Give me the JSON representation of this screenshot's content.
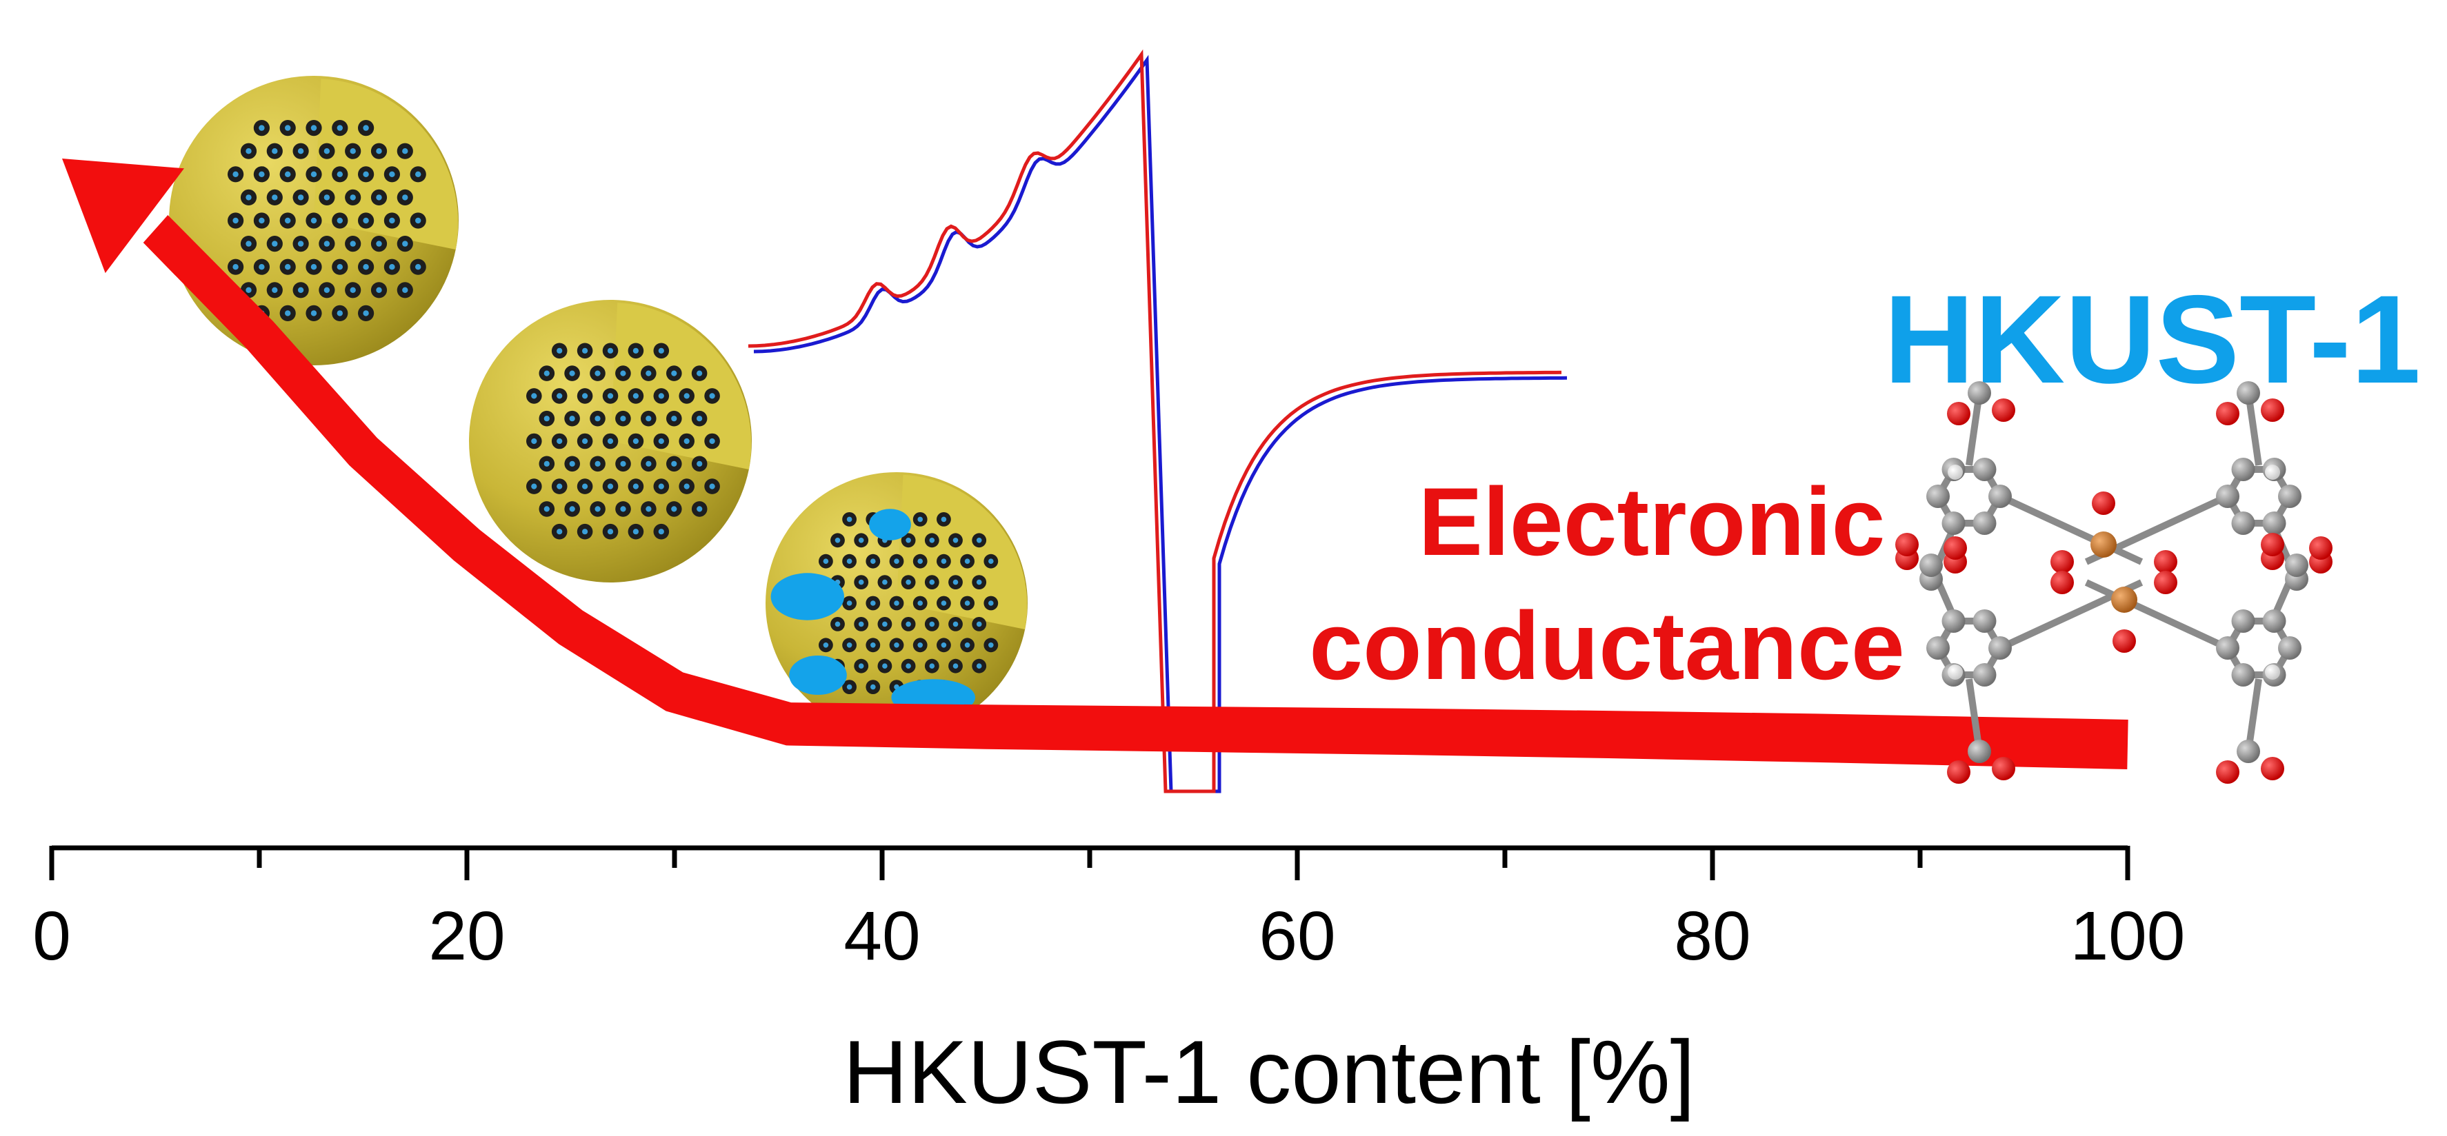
{
  "chart_data": {
    "type": "line",
    "title": "HKUST-1",
    "annotation": "Electronic conductance",
    "xlabel": "HKUST-1 content [%]",
    "ylabel": "",
    "xlim": [
      0,
      100
    ],
    "x_ticks_major": [
      0,
      20,
      40,
      60,
      80,
      100
    ],
    "x_ticks_major_labels": [
      "0",
      "20",
      "40",
      "60",
      "80",
      "100"
    ],
    "x_ticks_minor": [
      10,
      30,
      50,
      70,
      90
    ],
    "series": [
      {
        "name": "electronic-conductance-trend",
        "x": [
          0.5,
          5,
          10,
          15,
          20,
          25,
          30,
          35.5,
          45,
          55,
          65,
          75,
          85,
          100
        ],
        "values": [
          1.0,
          0.88,
          0.7,
          0.5,
          0.34,
          0.2,
          0.09,
          0.035,
          0.03,
          0.026,
          0.022,
          0.017,
          0.011,
          0.0
        ]
      }
    ],
    "inset_spectra_series": [
      {
        "name": "blue-trace",
        "color": "#1a1ad0"
      },
      {
        "name": "red-trace",
        "color": "#e01c1c"
      }
    ],
    "legend": "none",
    "grid": false
  },
  "colors": {
    "title": "#0fa0ea",
    "annotation": "#e81010",
    "trend": "#f20e0e",
    "axis": "#000000",
    "sphere": "#c9b637",
    "pore": "#1e1e1e",
    "mof_patch": "#14a3ea",
    "cu_atom": "#c8782a",
    "o_atom": "#de0c0c",
    "c_atom": "#8a8a8a"
  },
  "icons": [
    "mesoporous-sphere-icon",
    "mof-molecule-icon"
  ]
}
